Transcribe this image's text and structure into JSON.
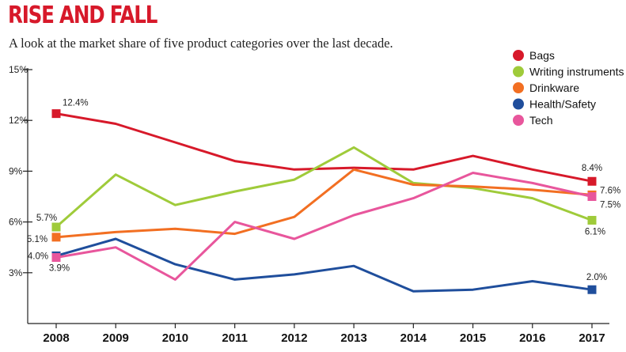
{
  "chart_data": {
    "type": "line",
    "title": "RISE AND FALL",
    "subtitle": "A look at the market share of five product categories over the last decade.",
    "x": [
      "2008",
      "2009",
      "2010",
      "2011",
      "2012",
      "2013",
      "2014",
      "2015",
      "2016",
      "2017"
    ],
    "ylim": [
      0,
      15
    ],
    "yticks": [
      "3%",
      "6%",
      "9%",
      "12%",
      "15%"
    ],
    "yticks_values": [
      3,
      6,
      9,
      12,
      15
    ],
    "grid": false,
    "legend_position": "top-right",
    "series": [
      {
        "name": "Bags",
        "color": "#d7192a",
        "values": [
          12.4,
          11.8,
          10.7,
          9.6,
          9.1,
          9.2,
          9.1,
          9.9,
          9.1,
          8.4
        ],
        "start_label": "12.4%",
        "end_label": "8.4%"
      },
      {
        "name": "Writing instruments",
        "color": "#9fcb3a",
        "values": [
          5.7,
          8.8,
          7.0,
          7.8,
          8.5,
          10.4,
          8.3,
          8.0,
          7.4,
          6.1
        ],
        "start_label": "5.7%",
        "end_label": "6.1%"
      },
      {
        "name": "Drinkware",
        "color": "#f26f22",
        "values": [
          5.1,
          5.4,
          5.6,
          5.3,
          6.3,
          9.1,
          8.2,
          8.1,
          7.9,
          7.6
        ],
        "start_label": "5.1%",
        "end_label": "7.6%"
      },
      {
        "name": "Health/Safety",
        "color": "#1f4e9c",
        "values": [
          4.0,
          5.0,
          3.5,
          2.6,
          2.9,
          3.4,
          1.9,
          2.0,
          2.5,
          2.0
        ],
        "start_label": "4.0%",
        "end_label": "2.0%"
      },
      {
        "name": "Tech",
        "color": "#e8569c",
        "values": [
          3.9,
          4.5,
          2.6,
          6.0,
          5.0,
          6.4,
          7.4,
          8.9,
          8.3,
          7.5
        ],
        "start_label": "3.9%",
        "end_label": "7.5%"
      }
    ]
  }
}
